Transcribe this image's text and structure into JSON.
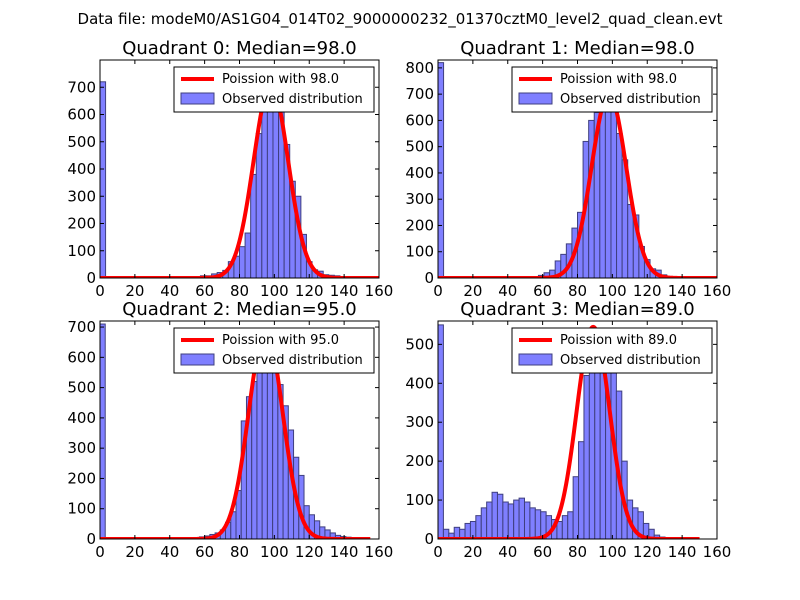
{
  "figure": {
    "suptitle": "Data file: modeM0/AS1G04_014T02_9000000232_01370cztM0_level2_quad_clean.evt"
  },
  "chart_data": [
    {
      "type": "bar",
      "title": "Quadrant 0: Median=98.0",
      "xlabel": "",
      "ylabel": "",
      "xlim": [
        0,
        160
      ],
      "ylim": [
        0,
        800
      ],
      "xticks": [
        0,
        20,
        40,
        60,
        80,
        100,
        120,
        140,
        160
      ],
      "yticks": [
        0,
        100,
        200,
        300,
        400,
        500,
        600,
        700
      ],
      "bin_width": 3.2,
      "bins": [
        [
          0,
          720
        ],
        [
          51.2,
          3
        ],
        [
          54.4,
          5
        ],
        [
          57.6,
          8
        ],
        [
          60.8,
          8
        ],
        [
          64,
          15
        ],
        [
          67.2,
          20
        ],
        [
          70.4,
          28
        ],
        [
          73.6,
          60
        ],
        [
          76.8,
          80
        ],
        [
          80,
          115
        ],
        [
          83.2,
          165
        ],
        [
          86.4,
          380
        ],
        [
          89.6,
          530
        ],
        [
          92.8,
          610
        ],
        [
          96,
          660
        ],
        [
          99.2,
          680
        ],
        [
          102.4,
          630
        ],
        [
          105.6,
          490
        ],
        [
          108.8,
          355
        ],
        [
          112,
          300
        ],
        [
          115.2,
          160
        ],
        [
          118.4,
          60
        ],
        [
          121.6,
          30
        ],
        [
          124.8,
          25
        ],
        [
          128,
          12
        ],
        [
          131.2,
          10
        ],
        [
          134.4,
          8
        ],
        [
          137.6,
          5
        ]
      ],
      "fit_mean": 98.0,
      "fit_peak": 710,
      "fit_range": [
        0,
        160
      ],
      "legend": {
        "line": "Poission with 98.0",
        "bars": "Observed distribution"
      },
      "legend_position": "top-right"
    },
    {
      "type": "bar",
      "title": "Quadrant 1: Median=98.0",
      "xlabel": "",
      "ylabel": "",
      "xlim": [
        0,
        160
      ],
      "ylim": [
        0,
        830
      ],
      "xticks": [
        0,
        20,
        40,
        60,
        80,
        100,
        120,
        140,
        160
      ],
      "yticks": [
        0,
        100,
        200,
        300,
        400,
        500,
        600,
        700,
        800
      ],
      "bin_width": 3.2,
      "bins": [
        [
          0,
          820
        ],
        [
          54.4,
          3
        ],
        [
          57.6,
          10
        ],
        [
          60.8,
          20
        ],
        [
          64,
          30
        ],
        [
          67.2,
          65
        ],
        [
          70.4,
          90
        ],
        [
          73.6,
          130
        ],
        [
          76.8,
          190
        ],
        [
          80,
          250
        ],
        [
          83.2,
          520
        ],
        [
          86.4,
          600
        ],
        [
          89.6,
          630
        ],
        [
          92.8,
          700
        ],
        [
          96,
          720
        ],
        [
          99.2,
          650
        ],
        [
          102.4,
          550
        ],
        [
          105.6,
          450
        ],
        [
          108.8,
          280
        ],
        [
          112,
          240
        ],
        [
          115.2,
          120
        ],
        [
          118.4,
          70
        ],
        [
          121.6,
          35
        ],
        [
          124.8,
          30
        ],
        [
          128,
          12
        ],
        [
          131.2,
          6
        ]
      ],
      "fit_mean": 98.0,
      "fit_peak": 700,
      "fit_range": [
        0,
        160
      ],
      "legend": {
        "line": "Poission with 98.0",
        "bars": "Observed distribution"
      },
      "legend_position": "top-right"
    },
    {
      "type": "bar",
      "title": "Quadrant 2: Median=95.0",
      "xlabel": "",
      "ylabel": "",
      "xlim": [
        0,
        160
      ],
      "ylim": [
        0,
        720
      ],
      "xticks": [
        0,
        20,
        40,
        60,
        80,
        100,
        120,
        140,
        160
      ],
      "yticks": [
        0,
        100,
        200,
        300,
        400,
        500,
        600,
        700
      ],
      "bin_width": 3.0,
      "bins": [
        [
          0,
          710
        ],
        [
          54,
          5
        ],
        [
          57,
          7
        ],
        [
          60,
          10
        ],
        [
          63,
          15
        ],
        [
          66,
          20
        ],
        [
          69,
          30
        ],
        [
          72,
          55
        ],
        [
          75,
          90
        ],
        [
          78,
          160
        ],
        [
          81,
          390
        ],
        [
          84,
          470
        ],
        [
          87,
          520
        ],
        [
          90,
          600
        ],
        [
          93,
          580
        ],
        [
          96,
          650
        ],
        [
          99,
          620
        ],
        [
          102,
          510
        ],
        [
          105,
          440
        ],
        [
          108,
          360
        ],
        [
          111,
          270
        ],
        [
          114,
          210
        ],
        [
          117,
          110
        ],
        [
          120,
          80
        ],
        [
          123,
          60
        ],
        [
          126,
          40
        ],
        [
          129,
          30
        ],
        [
          132,
          20
        ],
        [
          135,
          12
        ],
        [
          138,
          8
        ],
        [
          141,
          6
        ],
        [
          144,
          4
        ],
        [
          147,
          4
        ]
      ],
      "fit_mean": 95.0,
      "fit_peak": 690,
      "fit_range": [
        0,
        155
      ],
      "legend": {
        "line": "Poission with 95.0",
        "bars": "Observed distribution"
      },
      "legend_position": "top-right"
    },
    {
      "type": "bar",
      "title": "Quadrant 3: Median=89.0",
      "xlabel": "",
      "ylabel": "",
      "xlim": [
        0,
        160
      ],
      "ylim": [
        0,
        560
      ],
      "xticks": [
        0,
        20,
        40,
        60,
        80,
        100,
        120,
        140,
        160
      ],
      "yticks": [
        0,
        100,
        200,
        300,
        400,
        500
      ],
      "bin_width": 3.1,
      "bins": [
        [
          0,
          550
        ],
        [
          3.1,
          25
        ],
        [
          6.2,
          15
        ],
        [
          9.3,
          30
        ],
        [
          12.4,
          25
        ],
        [
          15.5,
          40
        ],
        [
          18.6,
          45
        ],
        [
          21.7,
          60
        ],
        [
          24.8,
          80
        ],
        [
          27.9,
          95
        ],
        [
          31,
          120
        ],
        [
          34.1,
          115
        ],
        [
          37.2,
          95
        ],
        [
          40.3,
          90
        ],
        [
          43.4,
          100
        ],
        [
          46.5,
          105
        ],
        [
          49.6,
          95
        ],
        [
          52.7,
          80
        ],
        [
          55.8,
          75
        ],
        [
          58.9,
          70
        ],
        [
          62,
          60
        ],
        [
          65.1,
          50
        ],
        [
          68.2,
          45
        ],
        [
          71.3,
          60
        ],
        [
          74.4,
          70
        ],
        [
          77.5,
          160
        ],
        [
          80.6,
          250
        ],
        [
          83.7,
          420
        ],
        [
          86.8,
          430
        ],
        [
          89.9,
          490
        ],
        [
          93,
          510
        ],
        [
          96.1,
          520
        ],
        [
          99.2,
          460
        ],
        [
          102.3,
          380
        ],
        [
          105.4,
          200
        ],
        [
          108.5,
          100
        ],
        [
          111.6,
          80
        ],
        [
          114.7,
          70
        ],
        [
          117.8,
          40
        ],
        [
          120.9,
          25
        ],
        [
          124,
          10
        ],
        [
          127.1,
          5
        ]
      ],
      "fit_mean": 89.0,
      "fit_peak": 545,
      "fit_range": [
        0,
        150
      ],
      "legend": {
        "line": "Poission with 89.0",
        "bars": "Observed distribution"
      },
      "legend_position": "top-right"
    }
  ]
}
